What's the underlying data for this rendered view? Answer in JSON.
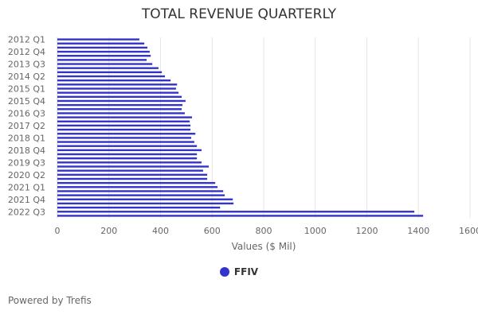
{
  "chart_data": {
    "type": "bar",
    "orientation": "horizontal",
    "title": "TOTAL REVENUE QUARTERLY",
    "xlabel": "Values ($ Mil)",
    "ylabel": "",
    "xlim": [
      0,
      1600
    ],
    "xticks": [
      0,
      200,
      400,
      600,
      800,
      1000,
      1200,
      1400,
      1600
    ],
    "grid": true,
    "legend_position": "bottom",
    "categories": [
      "2012 Q1",
      "2012 Q2",
      "2012 Q3",
      "2012 Q4",
      "2013 Q1",
      "2013 Q2",
      "2013 Q3",
      "2013 Q4",
      "2014 Q1",
      "2014 Q2",
      "2014 Q3",
      "2014 Q4",
      "2015 Q1",
      "2015 Q2",
      "2015 Q3",
      "2015 Q4",
      "2016 Q1",
      "2016 Q2",
      "2016 Q3",
      "2016 Q4",
      "2017 Q1",
      "2017 Q2",
      "2017 Q3",
      "2017 Q4",
      "2018 Q1",
      "2018 Q2",
      "2018 Q3",
      "2018 Q4",
      "2019 Q1",
      "2019 Q2",
      "2019 Q3",
      "2019 Q4",
      "2020 Q1",
      "2020 Q2",
      "2020 Q3",
      "2020 Q4",
      "2021 Q1",
      "2021 Q2",
      "2021 Q3",
      "2021 Q4",
      "2022 Q1",
      "2022 Q2",
      "2022 Q3",
      "2022 Q4"
    ],
    "shown_category_labels": [
      "2012 Q1",
      "2012 Q4",
      "2013 Q3",
      "2014 Q2",
      "2015 Q1",
      "2015 Q4",
      "2016 Q3",
      "2017 Q2",
      "2018 Q1",
      "2018 Q4",
      "2019 Q3",
      "2020 Q2",
      "2021 Q1",
      "2021 Q4",
      "2022 Q3"
    ],
    "series": [
      {
        "name": "FFIV",
        "color": "#3333cc",
        "values": [
          318,
          337,
          349,
          358,
          362,
          346,
          368,
          392,
          405,
          417,
          439,
          464,
          460,
          470,
          482,
          497,
          485,
          482,
          494,
          522,
          513,
          516,
          516,
          535,
          519,
          531,
          541,
          559,
          541,
          541,
          559,
          587,
          565,
          581,
          581,
          612,
          621,
          643,
          649,
          680,
          683,
          631,
          1384,
          1418
        ]
      }
    ]
  },
  "footer": {
    "credit": "Powered by Trefis"
  }
}
